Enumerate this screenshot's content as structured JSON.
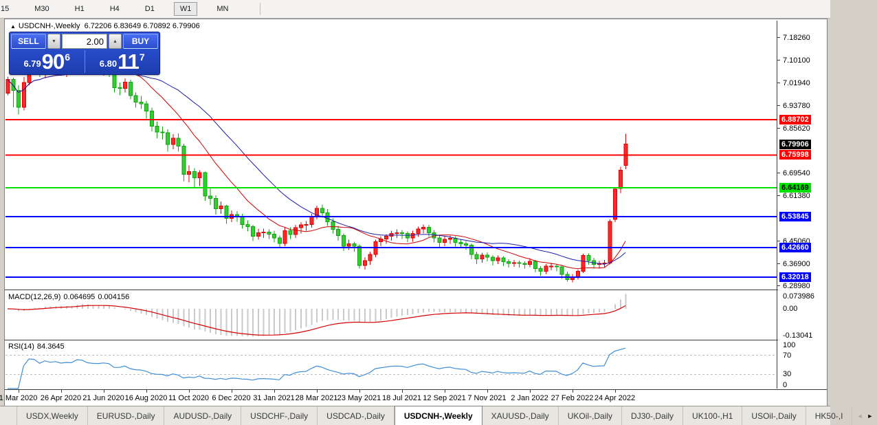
{
  "toolbar": {
    "timeframes": [
      "15",
      "M30",
      "H1",
      "H4",
      "D1",
      "W1",
      "MN"
    ],
    "active": "W1"
  },
  "chart": {
    "collapse_icon": "▲",
    "symbol_label": "USDCNH-,Weekly",
    "open": "6.72206",
    "high": "6.83649",
    "low": "6.70892",
    "close": "6.79906"
  },
  "trade_panel": {
    "sell_label": "SELL",
    "buy_label": "BUY",
    "volume": "2.00",
    "down_arrow": "▼",
    "up_arrow": "▲",
    "bid": {
      "prefix": "6.79",
      "big": "90",
      "sup": "6"
    },
    "ask": {
      "prefix": "6.80",
      "big": "11",
      "sup": "7"
    }
  },
  "indicators": {
    "macd": {
      "name": "MACD(12,26,9)",
      "main_value": "0.064695",
      "signal_value": "0.004156"
    },
    "rsi": {
      "name": "RSI(14)",
      "value": "84.3645"
    }
  },
  "tabs": {
    "items": [
      "USDX,Weekly",
      "EURUSD-,Daily",
      "AUDUSD-,Daily",
      "USDCHF-,Daily",
      "USDCAD-,Daily",
      "USDCNH-,Weekly",
      "XAUUSD-,Daily",
      "UKOil-,Daily",
      "DJ30-,Daily",
      "UK100-,H1",
      "USOil-,Daily",
      "HK50-,I"
    ],
    "active_index": 5,
    "scroll_left": "◄",
    "scroll_right": "►"
  },
  "chart_data": {
    "type": "candlestick",
    "symbol": "USDCNH-",
    "timeframe": "Weekly",
    "price_axis": {
      "min": 6.2785,
      "max": 7.243,
      "ticks": [
        "7.18260",
        "7.10100",
        "7.01940",
        "6.93780",
        "6.85620",
        "6.69540",
        "6.61380",
        "6.45060",
        "6.36900",
        "6.28980"
      ],
      "current": {
        "price": 6.79906,
        "label": "6.79906",
        "bg": "#000000",
        "fg": "#ffffff"
      }
    },
    "horizontal_lines": [
      {
        "price": 6.88702,
        "label": "6.88702",
        "color": "#ff0000",
        "text": "#ffffff"
      },
      {
        "price": 6.75998,
        "label": "6.75998",
        "color": "#ff0000",
        "text": "#ffffff"
      },
      {
        "price": 6.64169,
        "label": "6.64169",
        "color": "#00e100",
        "text": "#000000"
      },
      {
        "price": 6.53845,
        "label": "6.53845",
        "color": "#0000ff",
        "text": "#ffffff"
      },
      {
        "price": 6.4266,
        "label": "6.42660",
        "color": "#0000ff",
        "text": "#ffffff"
      },
      {
        "price": 6.32018,
        "label": "6.32018",
        "color": "#0000ff",
        "text": "#ffffff"
      }
    ],
    "x_axis": {
      "labels": [
        "1 Mar 2020",
        "26 Apr 2020",
        "21 Jun 2020",
        "16 Aug 2020",
        "11 Oct 2020",
        "6 Dec 2020",
        "31 Jan 2021",
        "28 Mar 2021",
        "23 May 2021",
        "18 Jul 2021",
        "12 Sep 2021",
        "7 Nov 2021",
        "2 Jan 2022",
        "27 Feb 2022",
        "24 Apr 2022"
      ],
      "first_tick_candle_index": 2,
      "candles_per_tick": 8
    },
    "overlays": [
      {
        "type": "sma",
        "period": 13,
        "color": "#cc0000"
      },
      {
        "type": "sma",
        "period": 26,
        "color": "#1c1caa"
      }
    ],
    "style": {
      "up_fill": "#fb2a2a",
      "up_stroke": "#dd0000",
      "down_fill": "#35cb35",
      "down_stroke": "#0fa30f",
      "bg": "#ffffff"
    },
    "macd": {
      "params": "12,26,9",
      "range_max": 0.073986,
      "range_min": -0.13041,
      "axis_labels": [
        {
          "v": 0.073986,
          "t": "0.073986"
        },
        {
          "v": 0,
          "t": "0.00"
        },
        {
          "v": -0.13041,
          "t": "-0.13041"
        }
      ],
      "hist_color": "#c9c9c9",
      "signal_color": "#d40000"
    },
    "rsi": {
      "period": 14,
      "levels": [
        70,
        30
      ],
      "axis_labels": [
        {
          "v": 100,
          "t": "100"
        },
        {
          "v": 70,
          "t": "70"
        },
        {
          "v": 30,
          "t": "30"
        },
        {
          "v": 0,
          "t": "0"
        }
      ],
      "color": "#3f8ed5",
      "level_color": "#bdbdbd",
      "range": [
        0,
        100
      ]
    },
    "candles": [
      [
        6.982,
        7.042,
        6.975,
        7.031
      ],
      [
        7.031,
        7.038,
        6.932,
        6.992
      ],
      [
        6.992,
        7.01,
        6.905,
        6.932
      ],
      [
        6.932,
        7.04,
        6.92,
        7.021
      ],
      [
        7.021,
        7.12,
        7.01,
        7.096
      ],
      [
        7.096,
        7.165,
        7.05,
        7.093
      ],
      [
        7.093,
        7.11,
        7.04,
        7.051
      ],
      [
        7.051,
        7.1,
        7.035,
        7.089
      ],
      [
        7.089,
        7.105,
        7.048,
        7.07
      ],
      [
        7.07,
        7.102,
        7.055,
        7.082
      ],
      [
        7.082,
        7.095,
        7.045,
        7.06
      ],
      [
        7.06,
        7.085,
        7.04,
        7.072
      ],
      [
        7.072,
        7.09,
        7.052,
        7.068
      ],
      [
        7.068,
        7.148,
        7.06,
        7.135
      ],
      [
        7.135,
        7.177,
        7.09,
        7.128
      ],
      [
        7.128,
        7.14,
        7.065,
        7.082
      ],
      [
        7.082,
        7.098,
        7.048,
        7.07
      ],
      [
        7.07,
        7.088,
        7.05,
        7.068
      ],
      [
        7.068,
        7.092,
        7.045,
        7.078
      ],
      [
        7.078,
        7.09,
        7.04,
        7.068
      ],
      [
        7.068,
        7.075,
        6.985,
        7.002
      ],
      [
        7.002,
        7.02,
        6.975,
        7.0
      ],
      [
        7.0,
        7.035,
        6.985,
        7.022
      ],
      [
        7.022,
        7.03,
        6.96,
        6.974
      ],
      [
        6.974,
        6.985,
        6.93,
        6.95
      ],
      [
        6.95,
        6.972,
        6.925,
        6.944
      ],
      [
        6.944,
        6.955,
        6.89,
        6.918
      ],
      [
        6.918,
        6.93,
        6.845,
        6.864
      ],
      [
        6.864,
        6.88,
        6.82,
        6.842
      ],
      [
        6.842,
        6.862,
        6.815,
        6.84
      ],
      [
        6.84,
        6.852,
        6.772,
        6.798
      ],
      [
        6.798,
        6.835,
        6.78,
        6.82
      ],
      [
        6.82,
        6.838,
        6.772,
        6.792
      ],
      [
        6.792,
        6.8,
        6.665,
        6.69
      ],
      [
        6.69,
        6.722,
        6.662,
        6.7
      ],
      [
        6.7,
        6.712,
        6.64,
        6.678
      ],
      [
        6.678,
        6.705,
        6.648,
        6.697
      ],
      [
        6.697,
        6.7,
        6.595,
        6.612
      ],
      [
        6.612,
        6.64,
        6.58,
        6.604
      ],
      [
        6.604,
        6.615,
        6.545,
        6.566
      ],
      [
        6.566,
        6.592,
        6.548,
        6.576
      ],
      [
        6.576,
        6.58,
        6.512,
        6.532
      ],
      [
        6.532,
        6.56,
        6.518,
        6.546
      ],
      [
        6.546,
        6.558,
        6.52,
        6.54
      ],
      [
        6.54,
        6.548,
        6.495,
        6.51
      ],
      [
        6.51,
        6.525,
        6.485,
        6.502
      ],
      [
        6.502,
        6.508,
        6.45,
        6.468
      ],
      [
        6.468,
        6.495,
        6.455,
        6.48
      ],
      [
        6.48,
        6.495,
        6.462,
        6.482
      ],
      [
        6.482,
        6.492,
        6.458,
        6.475
      ],
      [
        6.475,
        6.488,
        6.445,
        6.462
      ],
      [
        6.462,
        6.47,
        6.425,
        6.442
      ],
      [
        6.442,
        6.498,
        6.432,
        6.488
      ],
      [
        6.488,
        6.5,
        6.458,
        6.474
      ],
      [
        6.474,
        6.508,
        6.462,
        6.498
      ],
      [
        6.498,
        6.518,
        6.478,
        6.508
      ],
      [
        6.508,
        6.522,
        6.488,
        6.51
      ],
      [
        6.51,
        6.548,
        6.498,
        6.54
      ],
      [
        6.54,
        6.578,
        6.528,
        6.568
      ],
      [
        6.568,
        6.582,
        6.535,
        6.552
      ],
      [
        6.552,
        6.565,
        6.505,
        6.52
      ],
      [
        6.52,
        6.532,
        6.478,
        6.492
      ],
      [
        6.492,
        6.505,
        6.452,
        6.47
      ],
      [
        6.47,
        6.478,
        6.415,
        6.432
      ],
      [
        6.432,
        6.455,
        6.418,
        6.44
      ],
      [
        6.44,
        6.448,
        6.412,
        6.432
      ],
      [
        6.432,
        6.438,
        6.352,
        6.362
      ],
      [
        6.362,
        6.392,
        6.348,
        6.38
      ],
      [
        6.38,
        6.412,
        6.365,
        6.402
      ],
      [
        6.402,
        6.455,
        6.392,
        6.448
      ],
      [
        6.448,
        6.468,
        6.432,
        6.458
      ],
      [
        6.458,
        6.475,
        6.44,
        6.468
      ],
      [
        6.468,
        6.488,
        6.452,
        6.478
      ],
      [
        6.478,
        6.492,
        6.462,
        6.48
      ],
      [
        6.48,
        6.49,
        6.458,
        6.478
      ],
      [
        6.478,
        6.485,
        6.445,
        6.462
      ],
      [
        6.462,
        6.488,
        6.448,
        6.478
      ],
      [
        6.478,
        6.502,
        6.465,
        6.494
      ],
      [
        6.494,
        6.51,
        6.478,
        6.5
      ],
      [
        6.5,
        6.508,
        6.465,
        6.48
      ],
      [
        6.48,
        6.49,
        6.445,
        6.462
      ],
      [
        6.462,
        6.472,
        6.428,
        6.446
      ],
      [
        6.446,
        6.468,
        6.432,
        6.456
      ],
      [
        6.456,
        6.47,
        6.44,
        6.46
      ],
      [
        6.46,
        6.468,
        6.43,
        6.446
      ],
      [
        6.446,
        6.458,
        6.425,
        6.44
      ],
      [
        6.44,
        6.45,
        6.418,
        6.436
      ],
      [
        6.436,
        6.442,
        6.385,
        6.402
      ],
      [
        6.402,
        6.412,
        6.368,
        6.386
      ],
      [
        6.386,
        6.408,
        6.372,
        6.4
      ],
      [
        6.4,
        6.41,
        6.378,
        6.392
      ],
      [
        6.392,
        6.4,
        6.362,
        6.38
      ],
      [
        6.38,
        6.398,
        6.368,
        6.39
      ],
      [
        6.39,
        6.396,
        6.36,
        6.376
      ],
      [
        6.376,
        6.385,
        6.355,
        6.37
      ],
      [
        6.37,
        6.382,
        6.358,
        6.372
      ],
      [
        6.372,
        6.38,
        6.355,
        6.37
      ],
      [
        6.37,
        6.378,
        6.352,
        6.366
      ],
      [
        6.366,
        6.388,
        6.356,
        6.378
      ],
      [
        6.378,
        6.382,
        6.338,
        6.352
      ],
      [
        6.352,
        6.36,
        6.325,
        6.342
      ],
      [
        6.342,
        6.368,
        6.332,
        6.36
      ],
      [
        6.36,
        6.372,
        6.345,
        6.36
      ],
      [
        6.36,
        6.368,
        6.342,
        6.358
      ],
      [
        6.358,
        6.362,
        6.315,
        6.33
      ],
      [
        6.33,
        6.34,
        6.305,
        6.312
      ],
      [
        6.312,
        6.332,
        6.302,
        6.322
      ],
      [
        6.322,
        6.348,
        6.312,
        6.342
      ],
      [
        6.342,
        6.405,
        6.335,
        6.398
      ],
      [
        6.398,
        6.406,
        6.365,
        6.38
      ],
      [
        6.38,
        6.39,
        6.352,
        6.366
      ],
      [
        6.366,
        6.38,
        6.352,
        6.37
      ],
      [
        6.37,
        6.382,
        6.355,
        6.371
      ],
      [
        6.371,
        6.528,
        6.366,
        6.521
      ],
      [
        6.528,
        6.645,
        6.518,
        6.637
      ],
      [
        6.639,
        6.718,
        6.622,
        6.705
      ],
      [
        6.72206,
        6.83649,
        6.70892,
        6.79906
      ]
    ]
  }
}
